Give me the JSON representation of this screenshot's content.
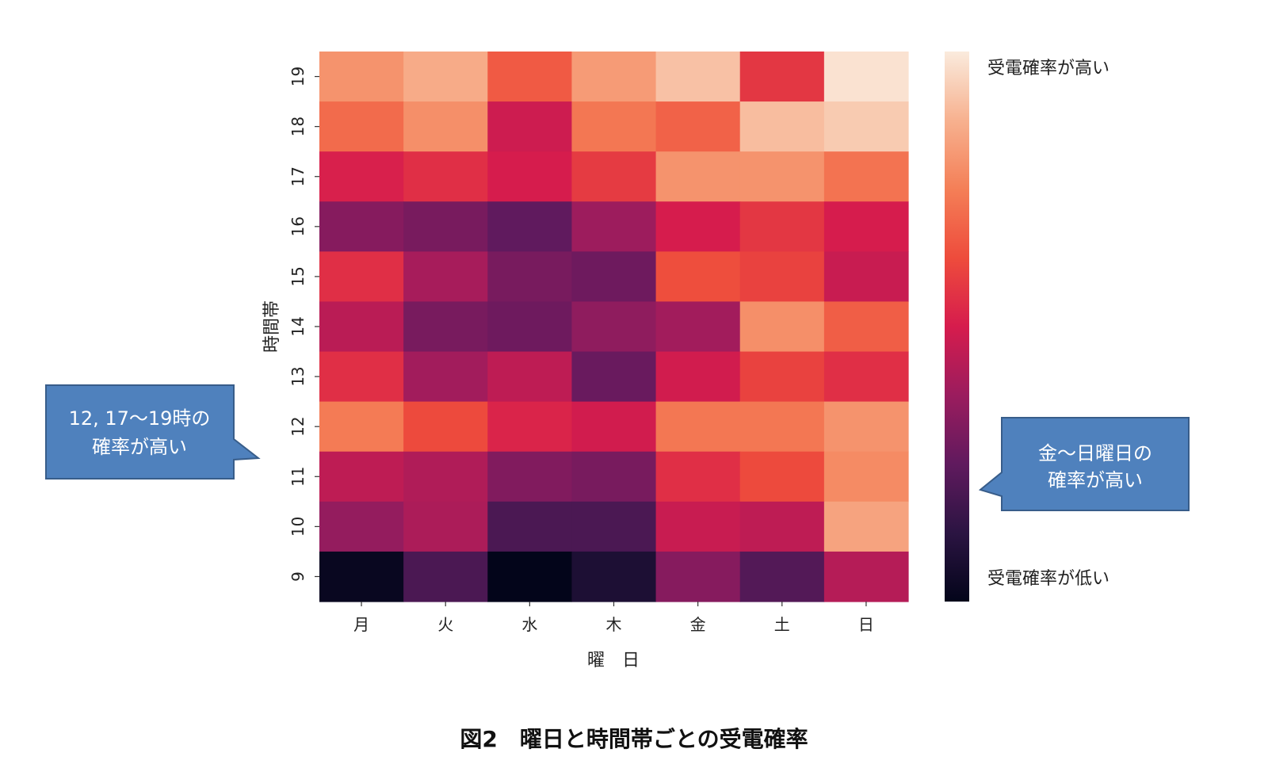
{
  "chart_data": {
    "type": "heatmap",
    "title": "",
    "xlabel": "曜　日",
    "ylabel": "時間帯",
    "x_categories": [
      "月",
      "火",
      "水",
      "木",
      "金",
      "土",
      "日"
    ],
    "y_categories": [
      "19",
      "18",
      "17",
      "16",
      "15",
      "14",
      "13",
      "12",
      "11",
      "10",
      "9"
    ],
    "value_range": [
      0,
      1
    ],
    "values": [
      [
        0.8,
        0.86,
        0.66,
        0.82,
        0.91,
        0.57,
        0.98
      ],
      [
        0.7,
        0.79,
        0.48,
        0.73,
        0.68,
        0.9,
        0.93
      ],
      [
        0.51,
        0.55,
        0.5,
        0.58,
        0.8,
        0.8,
        0.72
      ],
      [
        0.33,
        0.3,
        0.25,
        0.38,
        0.5,
        0.57,
        0.5
      ],
      [
        0.55,
        0.4,
        0.3,
        0.28,
        0.63,
        0.6,
        0.47
      ],
      [
        0.44,
        0.3,
        0.28,
        0.35,
        0.39,
        0.79,
        0.67
      ],
      [
        0.55,
        0.39,
        0.45,
        0.27,
        0.49,
        0.6,
        0.55
      ],
      [
        0.74,
        0.62,
        0.52,
        0.49,
        0.73,
        0.73,
        0.8
      ],
      [
        0.45,
        0.42,
        0.32,
        0.3,
        0.55,
        0.62,
        0.78
      ],
      [
        0.36,
        0.41,
        0.2,
        0.2,
        0.47,
        0.45,
        0.84
      ],
      [
        0.02,
        0.2,
        0.0,
        0.08,
        0.33,
        0.22,
        0.43
      ]
    ],
    "colorbar": {
      "colormap": "rocket",
      "top_label": "受電確率が高い",
      "bottom_label": "受電確率が低い"
    },
    "annotations": [
      {
        "text_lines": [
          "12, 17～19時の",
          "確率が高い"
        ]
      },
      {
        "text_lines": [
          "金～日曜日の",
          "確率が高い"
        ]
      }
    ]
  },
  "figure_caption": "図2　曜日と時間帯ごとの受電確率",
  "colors": {
    "callout_fill": "#4f81bd",
    "callout_stroke": "#385d8a",
    "callout_text": "#ffffff"
  }
}
